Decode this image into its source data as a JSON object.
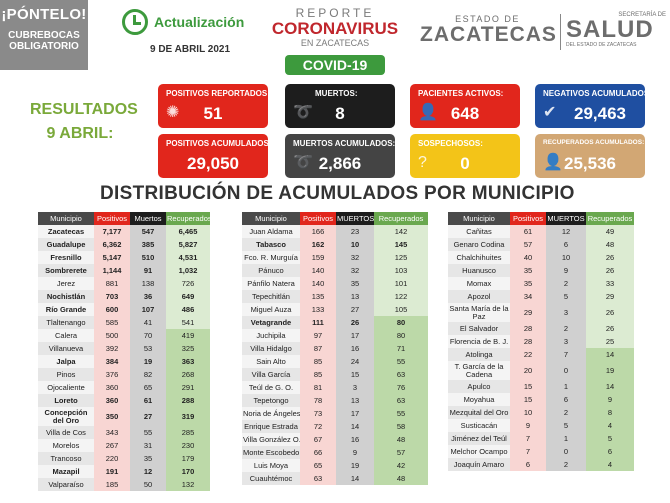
{
  "header": {
    "pontelo": "¡PÓNTELO!",
    "cubrebocas": "CUBREBOCAS",
    "obligatorio": "OBLIGATORIO",
    "actualizacion": "Actualización",
    "fecha": "9 DE ABRIL 2021",
    "reporte": "REPORTE",
    "coronavirus": "CORONAVIRUS",
    "en_zacatecas": "EN ZACATECAS",
    "covid": "COVID-19",
    "estado_de": "ESTADO DE",
    "zacatecas": "ZACATECAS",
    "secretaria": "SECRETARÍA DE",
    "salud": "SALUD",
    "salud_sub": "DEL ESTADO DE ZACATECAS"
  },
  "resultados": {
    "line1": "RESULTADOS",
    "line2": "9 ABRIL:"
  },
  "cards": {
    "positivos_reportados": {
      "label": "POSITIVOS REPORTADOS :",
      "value": "51"
    },
    "muertos": {
      "label": "MUERTOS:",
      "value": "8"
    },
    "pacientes_activos": {
      "label": "PACIENTES ACTIVOS:",
      "value": "648"
    },
    "negativos": {
      "label": "NEGATIVOS ACUMULADOS:",
      "value": "29,463"
    },
    "positivos_acumulados": {
      "label": "POSITIVOS ACUMULADOS:",
      "value": "29,050"
    },
    "muertos_acumulados": {
      "label": "MUERTOS ACUMULADOS:",
      "value": "2,866"
    },
    "sospechosos": {
      "label": "SOSPECHOSOS:",
      "value": "0"
    },
    "recuperados": {
      "label": "RECUPERADOS ACUMULADOS:",
      "value": "25,536"
    }
  },
  "title": "DISTRIBUCIÓN DE ACUMULADOS POR MUNICIPIO",
  "tables": [
    {
      "headers": [
        "Municipio",
        "Positivos",
        "Muertos",
        "Recuperados"
      ],
      "rows": [
        [
          "Zacatecas",
          "7,177",
          "547",
          "6,465"
        ],
        [
          "Guadalupe",
          "6,362",
          "385",
          "5,827"
        ],
        [
          "Fresnillo",
          "5,147",
          "510",
          "4,531"
        ],
        [
          "Sombrerete",
          "1,144",
          "91",
          "1,032"
        ],
        [
          "Jerez",
          "881",
          "138",
          "726"
        ],
        [
          "Nochistlán",
          "703",
          "36",
          "649"
        ],
        [
          "Río Grande",
          "600",
          "107",
          "486"
        ],
        [
          "Tlaltenango",
          "585",
          "41",
          "541"
        ],
        [
          "Calera",
          "500",
          "70",
          "419"
        ],
        [
          "Villanueva",
          "392",
          "53",
          "325"
        ],
        [
          "Jalpa",
          "384",
          "19",
          "363"
        ],
        [
          "Pinos",
          "376",
          "82",
          "268"
        ],
        [
          "Ojocaliente",
          "360",
          "65",
          "291"
        ],
        [
          "Loreto",
          "360",
          "61",
          "288"
        ],
        [
          "Concepción del Oro",
          "350",
          "27",
          "319"
        ],
        [
          "Villa de Cos",
          "343",
          "55",
          "285"
        ],
        [
          "Morelos",
          "267",
          "31",
          "230"
        ],
        [
          "Trancoso",
          "220",
          "35",
          "179"
        ],
        [
          "Mazapil",
          "191",
          "12",
          "170"
        ],
        [
          "Valparaíso",
          "185",
          "50",
          "132"
        ]
      ]
    },
    {
      "headers": [
        "Municipio",
        "Positivos",
        "MUERTOS",
        "Recuperados"
      ],
      "rows": [
        [
          "Juan Aldama",
          "166",
          "23",
          "142"
        ],
        [
          "Tabasco",
          "162",
          "10",
          "145"
        ],
        [
          "Fco. R. Murguía",
          "159",
          "32",
          "125"
        ],
        [
          "Pánuco",
          "140",
          "32",
          "103"
        ],
        [
          "Pánfilo Natera",
          "140",
          "35",
          "101"
        ],
        [
          "Tepechitlán",
          "135",
          "13",
          "122"
        ],
        [
          "Miguel Auza",
          "133",
          "27",
          "105"
        ],
        [
          "Vetagrande",
          "111",
          "26",
          "80"
        ],
        [
          "Juchipila",
          "97",
          "17",
          "80"
        ],
        [
          "Villa Hidalgo",
          "87",
          "16",
          "71"
        ],
        [
          "Sain Alto",
          "85",
          "24",
          "55"
        ],
        [
          "Villa García",
          "85",
          "15",
          "63"
        ],
        [
          "Teúl de G. O.",
          "81",
          "3",
          "76"
        ],
        [
          "Tepetongo",
          "78",
          "13",
          "63"
        ],
        [
          "Noria de Ángeles",
          "73",
          "17",
          "55"
        ],
        [
          "Enrique Estrada",
          "72",
          "14",
          "58"
        ],
        [
          "Villa González O.",
          "67",
          "16",
          "48"
        ],
        [
          "Monte Escobedo",
          "66",
          "9",
          "57"
        ],
        [
          "Luis Moya",
          "65",
          "19",
          "42"
        ],
        [
          "Cuauhtémoc",
          "63",
          "14",
          "48"
        ]
      ]
    },
    {
      "headers": [
        "Municipio",
        "Positivos",
        "MUERTOS",
        "Recuperados"
      ],
      "rows": [
        [
          "Cañitas",
          "61",
          "12",
          "49"
        ],
        [
          "Genaro Codina",
          "57",
          "6",
          "48"
        ],
        [
          "Chalchihuites",
          "40",
          "10",
          "26"
        ],
        [
          "Huanusco",
          "35",
          "9",
          "26"
        ],
        [
          "Momax",
          "35",
          "2",
          "33"
        ],
        [
          "Apozol",
          "34",
          "5",
          "29"
        ],
        [
          "Santa María de la Paz",
          "29",
          "3",
          "26"
        ],
        [
          "El Salvador",
          "28",
          "2",
          "26"
        ],
        [
          "Florencia de B. J.",
          "28",
          "3",
          "25"
        ],
        [
          "Atolinga",
          "22",
          "7",
          "14"
        ],
        [
          "T. García de la Cadena",
          "20",
          "0",
          "19"
        ],
        [
          "Apulco",
          "15",
          "1",
          "14"
        ],
        [
          "Moyahua",
          "15",
          "6",
          "9"
        ],
        [
          "Mezquital del Oro",
          "10",
          "2",
          "8"
        ],
        [
          "Susticacán",
          "9",
          "5",
          "4"
        ],
        [
          "Jiménez del Teúl",
          "7",
          "1",
          "5"
        ],
        [
          "Melchor Ocampo",
          "7",
          "0",
          "6"
        ],
        [
          "Joaquín Amaro",
          "6",
          "2",
          "4"
        ]
      ]
    }
  ]
}
